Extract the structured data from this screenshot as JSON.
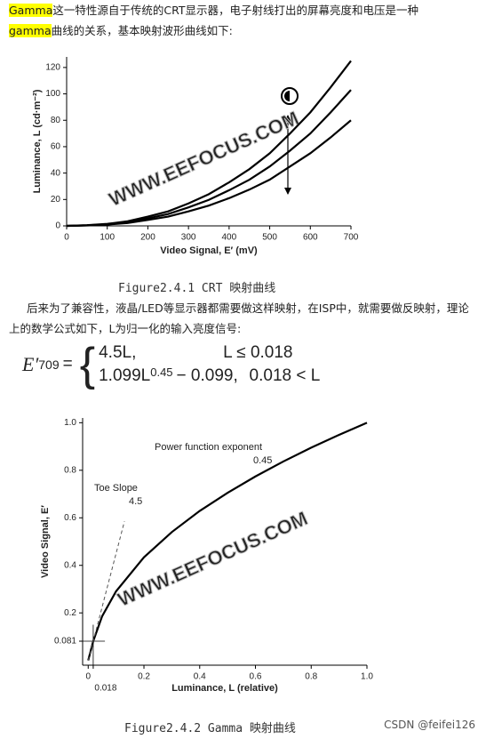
{
  "paragraph1": {
    "term1": "Gamma",
    "text1": "这一特性源自于传统的CRT显示器，电子射线打出的屏幕亮度和电压是一种",
    "term2": "gamma",
    "text2": "曲线的关系，基本映射波形曲线如下:"
  },
  "caption1": "Figure2.4.1 CRT 映射曲线",
  "paragraph2": "后来为了兼容性，液晶/LED等显示器都需要做这样映射，在ISP中，就需要做反映射，理论上的数学公式如下，L为归一化的输入亮度信号:",
  "formula": {
    "lhs": "E′",
    "sub": "709",
    "eq": "=",
    "case1_expr": "4.5L,",
    "case1_cond": "L ≤ 0.018",
    "case2_expr": "1.099L",
    "case2_exp": "0.45",
    "case2_rest": "− 0.099,",
    "case2_cond": "0.018 < L"
  },
  "caption2": "Figure2.4.2 Gamma 映射曲线",
  "footer": "CSDN @feifei126",
  "chart_data": [
    {
      "type": "line",
      "x_label": "Video Signal, E′ (mV)",
      "y_label": "Luminance, L (cd·m⁻²)",
      "watermark": "WWW.EEFOCUS.COM",
      "x": [
        0,
        50,
        100,
        150,
        200,
        250,
        300,
        350,
        400,
        450,
        500,
        550,
        600,
        650,
        700
      ],
      "series": [
        {
          "color": "#000000",
          "values": [
            0,
            0.5,
            1.5,
            3.5,
            7,
            11,
            17,
            24,
            33,
            43,
            55,
            70,
            86,
            105,
            125
          ]
        },
        {
          "color": "#000000",
          "values": [
            0,
            0.4,
            1.2,
            2.9,
            5.7,
            9,
            14,
            19.7,
            27,
            35,
            45,
            57,
            70,
            86,
            103
          ]
        },
        {
          "color": "#000000",
          "values": [
            0,
            0.3,
            1,
            2.2,
            4.5,
            7,
            11,
            15.4,
            21,
            27.5,
            35,
            45,
            55,
            67,
            80
          ]
        }
      ],
      "xlim": [
        0,
        700
      ],
      "xticks": [
        0,
        100,
        200,
        300,
        400,
        500,
        600,
        700
      ],
      "ylim": [
        0,
        128
      ],
      "yticks": [
        0,
        20,
        40,
        60,
        80,
        100,
        120
      ]
    },
    {
      "type": "line",
      "x_label": "Luminance, L (relative)",
      "y_label": "Video Signal, E′",
      "watermark": "WWW.EEFOCUS.COM",
      "annotations": [
        "Power function exponent",
        "0.45",
        "Toe Slope",
        "4.5"
      ],
      "series": [
        {
          "color": "#000000",
          "style": "solid",
          "x": [
            0,
            0.018,
            0.05,
            0.1,
            0.2,
            0.3,
            0.4,
            0.5,
            0.6,
            0.7,
            0.8,
            0.9,
            1
          ],
          "values": [
            0,
            0.081,
            0.186,
            0.291,
            0.434,
            0.54,
            0.629,
            0.705,
            0.774,
            0.837,
            0.895,
            0.949,
            1
          ]
        },
        {
          "color": "#555555",
          "style": "dashed",
          "x": [
            0,
            0.13
          ],
          "values": [
            0,
            0.585
          ]
        }
      ],
      "xlim": [
        -0.02,
        1
      ],
      "xticks": [
        0,
        {
          "value": 0.018,
          "label": "0.018"
        },
        0.2,
        0.4,
        0.6,
        0.8,
        {
          "value": 1,
          "label": "1.0"
        }
      ],
      "ylim": [
        -0.02,
        1.02
      ],
      "yticks": [
        {
          "value": 0.081,
          "label": "0.081"
        },
        0.2,
        0.4,
        0.6,
        0.8,
        {
          "value": 1,
          "label": "1.0"
        }
      ]
    }
  ]
}
